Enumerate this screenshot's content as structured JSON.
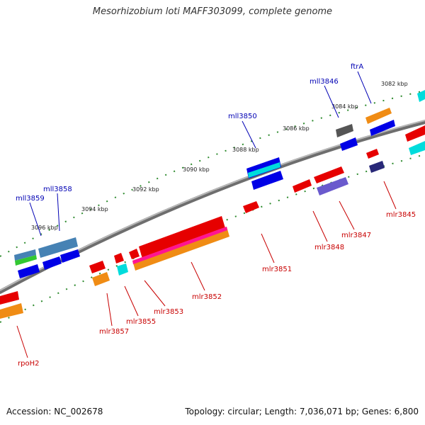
{
  "title": "Mesorhizobium loti MAFF303099, complete genome",
  "accession": "Accession: NC_002678",
  "summary": "Topology: circular; Length: 7,036,071 bp; Genes: 6,800",
  "colors": {
    "backbone": "#8a8a8a",
    "tick": "#2e8b2e",
    "forward_label": "#0000b4",
    "reverse_label": "#c80000"
  },
  "scale_ticks": [
    "3082 kbp",
    "3084 kbp",
    "3086 kbp",
    "3088 kbp",
    "3090 kbp",
    "3092 kbp",
    "3094 kbp",
    "3096 kbp"
  ],
  "forward_genes": [
    "ftrA",
    "mll3846",
    "mll3850",
    "mll3858",
    "mll3859"
  ],
  "reverse_genes": [
    "mlr3845",
    "mlr3847",
    "mlr3848",
    "mlr3851",
    "mlr3852",
    "mlr3853",
    "mlr3855",
    "mlr3857",
    "rpoH2"
  ]
}
